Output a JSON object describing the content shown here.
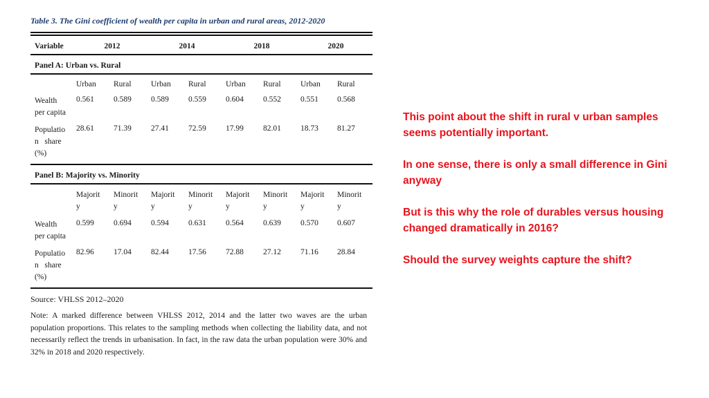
{
  "table": {
    "caption": "Table 3. The Gini coefficient of wealth per capita in urban and rural areas, 2012-2020",
    "header": [
      "Variable",
      "2012",
      "2014",
      "2018",
      "2020"
    ],
    "panel_a": {
      "title": "Panel A: Urban vs. Rural",
      "subheaders": [
        "Urban",
        "Rural",
        "Urban",
        "Rural",
        "Urban",
        "Rural",
        "Urban",
        "Rural"
      ],
      "rows": [
        {
          "label_lines": [
            "Wealth",
            "per capita"
          ],
          "values": [
            "0.561",
            "0.589",
            "0.589",
            "0.559",
            "0.604",
            "0.552",
            "0.551",
            "0.568"
          ]
        },
        {
          "label_lines": [
            "Populatio",
            "n   share",
            "(%)"
          ],
          "values": [
            "28.61",
            "71.39",
            "27.41",
            "72.59",
            "17.99",
            "82.01",
            "18.73",
            "81.27"
          ]
        }
      ]
    },
    "panel_b": {
      "title": "Panel B: Majority vs. Minority",
      "subheaders": [
        [
          "Majorit",
          "y"
        ],
        [
          "Minorit",
          "y"
        ],
        [
          "Majorit",
          "y"
        ],
        [
          "Minorit",
          "y"
        ],
        [
          "Majorit",
          "y"
        ],
        [
          "Minorit",
          "y"
        ],
        [
          "Majorit",
          "y"
        ],
        [
          "Minorit",
          "y"
        ]
      ],
      "rows": [
        {
          "label_lines": [
            "Wealth",
            "per capita"
          ],
          "values": [
            "0.599",
            "0.694",
            "0.594",
            "0.631",
            "0.564",
            "0.639",
            "0.570",
            "0.607"
          ]
        },
        {
          "label_lines": [
            "Populatio",
            "n   share",
            "(%)"
          ],
          "values": [
            "82.96",
            "17.04",
            "82.44",
            "17.56",
            "72.88",
            "27.12",
            "71.16",
            "28.84"
          ]
        }
      ]
    },
    "source": "Source: VHLSS 2012–2020",
    "note": "Note: A marked difference between VHLSS 2012, 2014 and the latter two waves are the urban population proportions. This relates to the sampling methods when collecting the liability data, and not necessarily reflect the trends in urbanisation. In fact, in the raw data the urban population were 30% and 32% in 2018 and 2020 respectively."
  },
  "comments": [
    "This point about the shift in rural v urban samples seems potentially important.",
    "In one sense, there is only a small difference in Gini anyway",
    "But is this why the role of durables versus housing changed dramatically in 2016?",
    "Should the survey weights capture the shift?"
  ],
  "colors": {
    "caption": "#1d3d6e",
    "comment": "#e8131c"
  }
}
